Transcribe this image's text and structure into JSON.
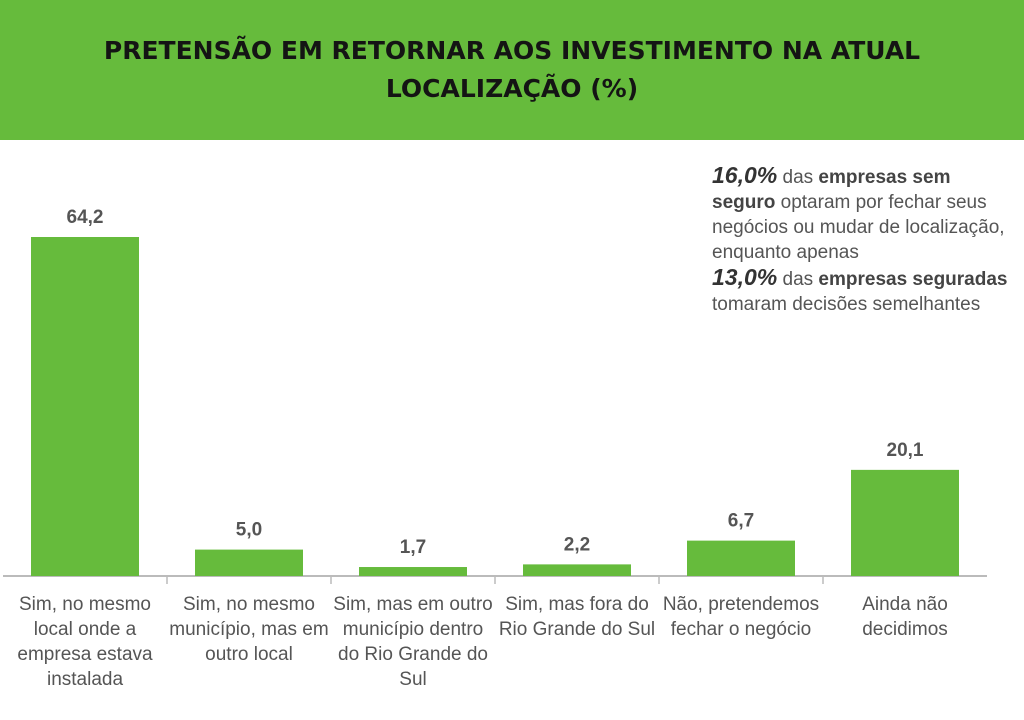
{
  "header": {
    "title": "PRETENSÃO EM RETORNAR AOS INVESTIMENTO NA ATUAL LOCALIZAÇÃO (%)"
  },
  "callout": {
    "pct1": "16,0%",
    "t1": " das ",
    "b1": "empresas sem seguro",
    "t2": " optaram por fechar seus negócios ou mudar de localização, enquanto apenas",
    "pct2": "13,0%",
    "t3": " das ",
    "b2": "empresas seguradas",
    "t4": " tomaram decisões semelhantes"
  },
  "colors": {
    "bar": "#66bb3c",
    "header_bg": "#66bb3c",
    "axis": "#bbbbbb",
    "value_label": "#555555"
  },
  "chart_data": {
    "type": "bar",
    "title": "PRETENSÃO EM RETORNAR AOS INVESTIMENTO NA ATUAL LOCALIZAÇÃO (%)",
    "categories": [
      "Sim, no mesmo local onde a empresa estava instalada",
      "Sim, no mesmo município, mas em outro local",
      "Sim, mas em outro município dentro do Rio Grande do Sul",
      "Sim, mas fora do Rio Grande do Sul",
      "Não, pretendemos fechar o negócio",
      "Ainda não decidimos"
    ],
    "values": [
      64.2,
      5.0,
      1.7,
      2.2,
      6.7,
      20.1
    ],
    "value_labels": [
      "64,2",
      "5,0",
      "1,7",
      "2,2",
      "6,7",
      "20,1"
    ],
    "xlabel": "",
    "ylabel": "%",
    "ylim": [
      0,
      64.2
    ],
    "grid": false,
    "legend": "none"
  }
}
